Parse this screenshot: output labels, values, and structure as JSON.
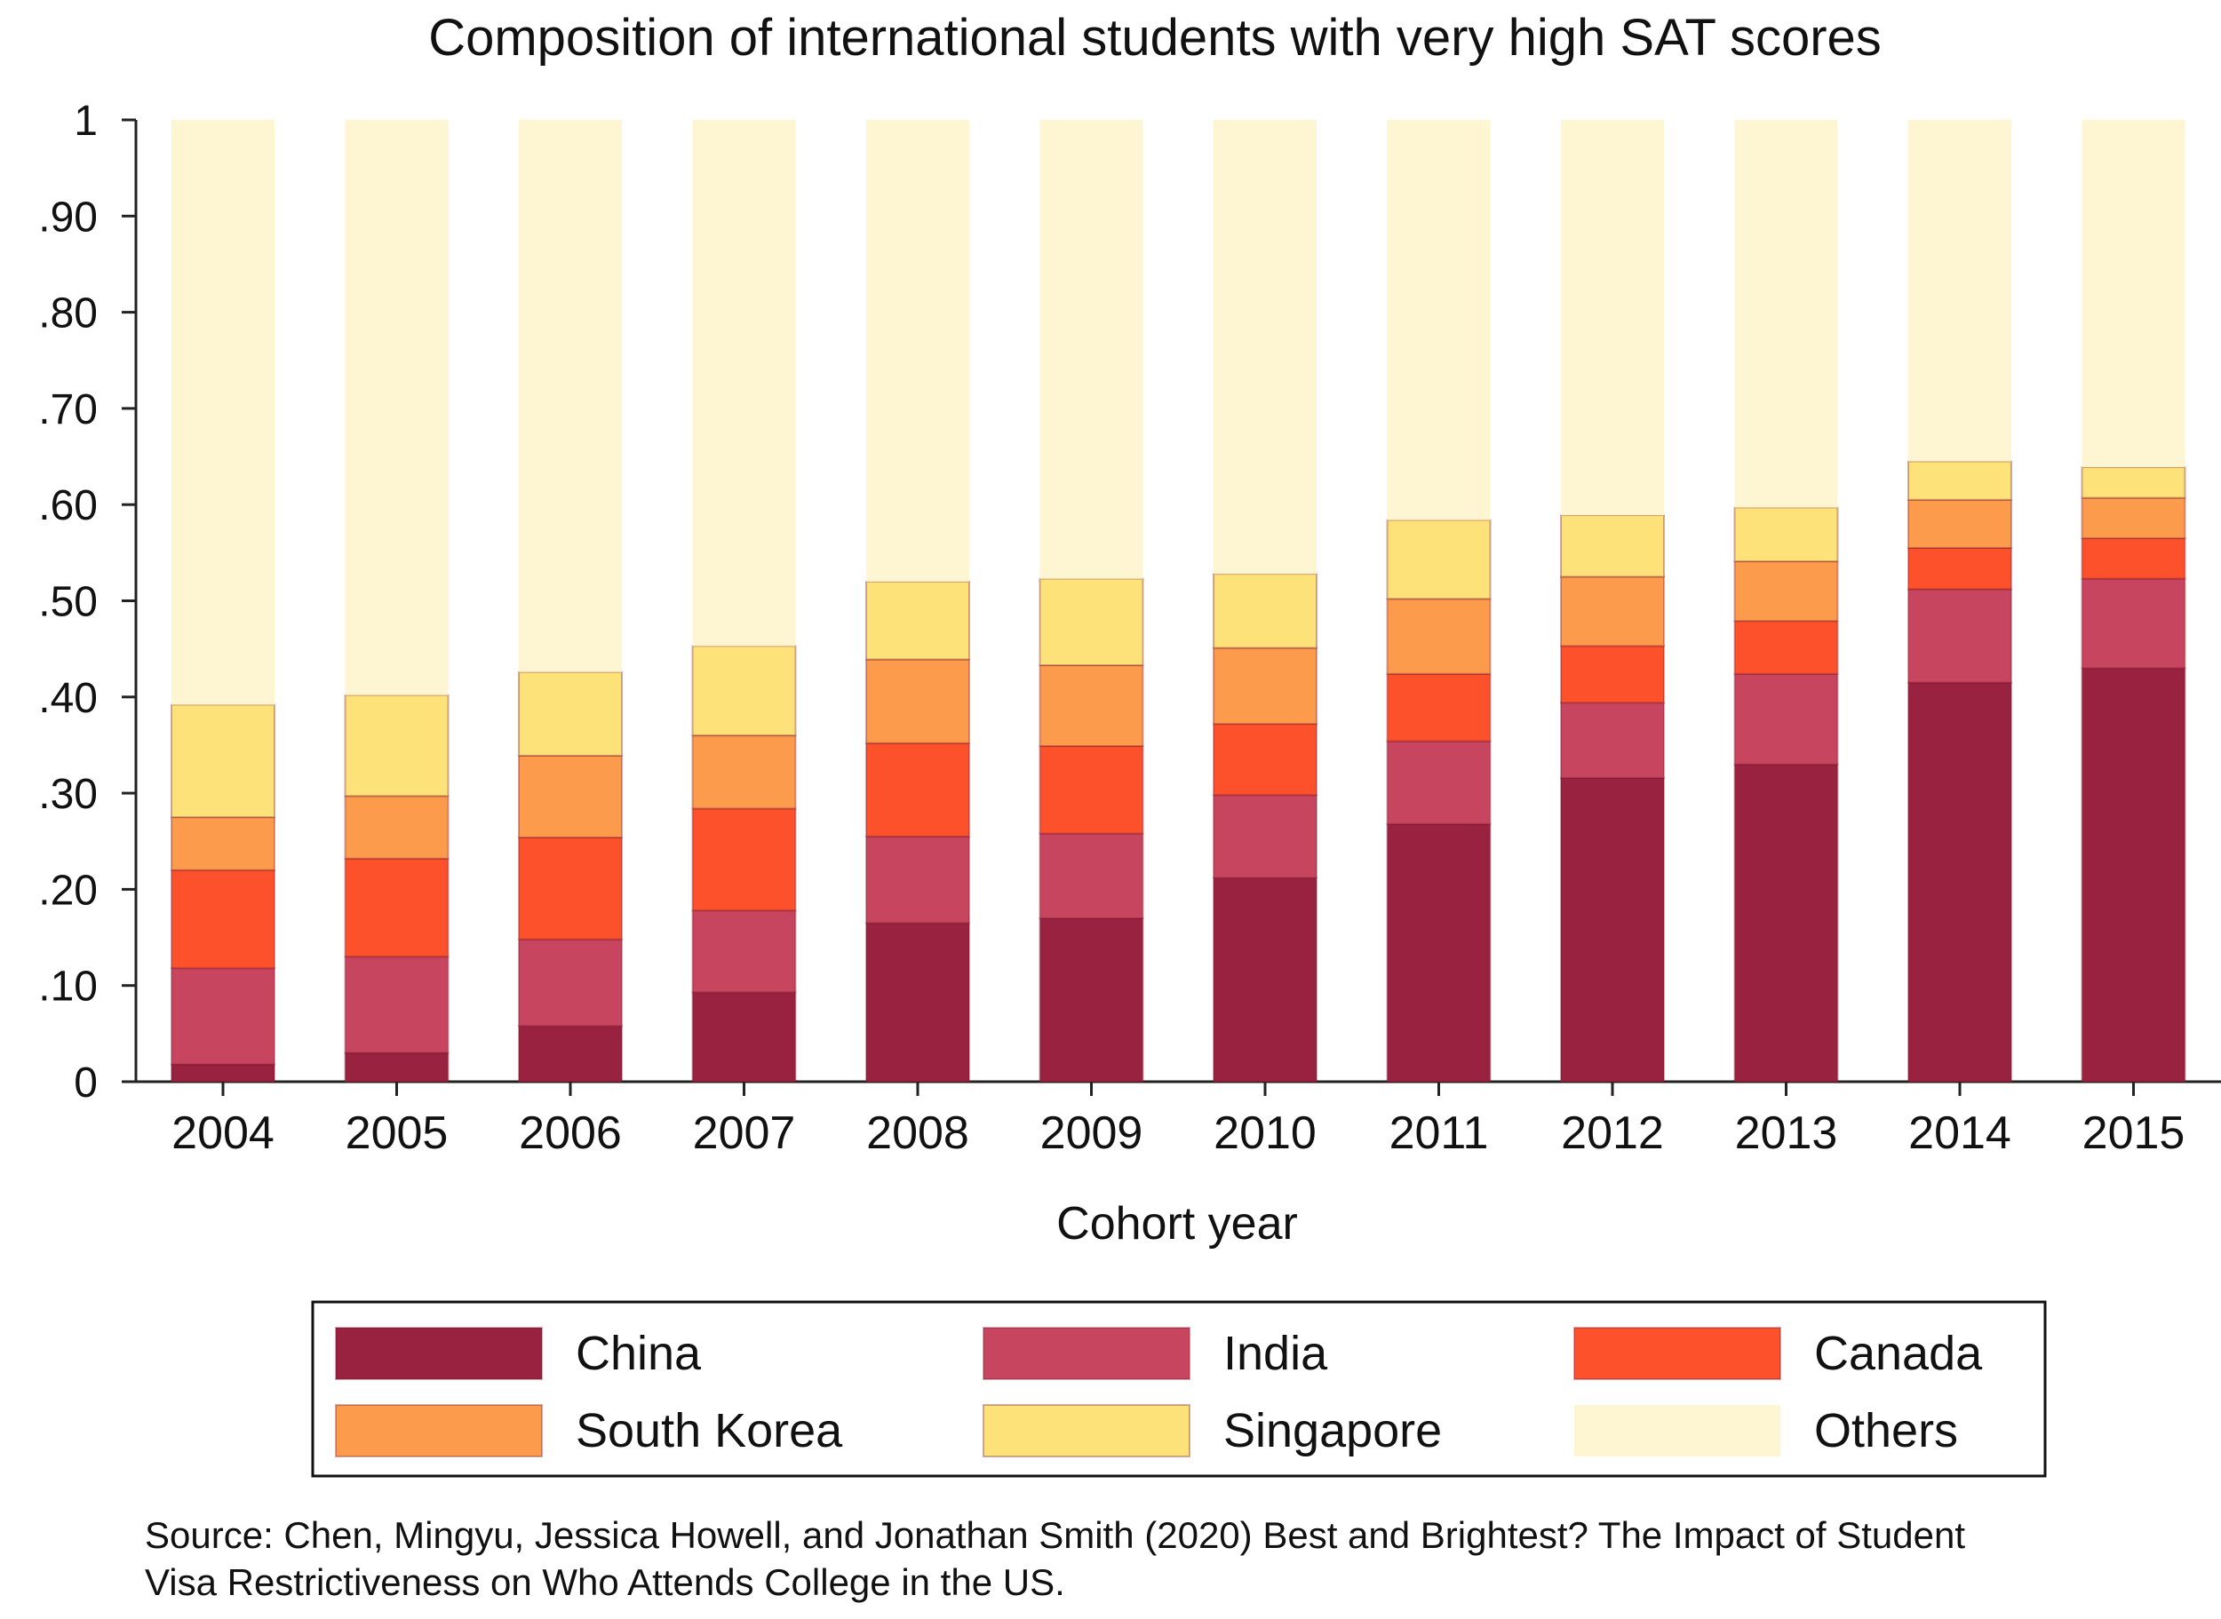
{
  "chart_data": {
    "type": "bar",
    "stacked": true,
    "title": "Composition of international students with very high SAT scores",
    "xlabel": "Cohort year",
    "ylabel": "",
    "ylim": [
      0,
      1
    ],
    "yticks": [
      {
        "value": 0,
        "label": "0"
      },
      {
        "value": 0.1,
        "label": ".10"
      },
      {
        "value": 0.2,
        "label": ".20"
      },
      {
        "value": 0.3,
        "label": ".30"
      },
      {
        "value": 0.4,
        "label": ".40"
      },
      {
        "value": 0.5,
        "label": ".50"
      },
      {
        "value": 0.6,
        "label": ".60"
      },
      {
        "value": 0.7,
        "label": ".70"
      },
      {
        "value": 0.8,
        "label": ".80"
      },
      {
        "value": 0.9,
        "label": ".90"
      },
      {
        "value": 1,
        "label": "1"
      }
    ],
    "categories": [
      "2004",
      "2005",
      "2006",
      "2007",
      "2008",
      "2009",
      "2010",
      "2011",
      "2012",
      "2013",
      "2014",
      "2015"
    ],
    "series": [
      {
        "name": "China",
        "color": "#98223f",
        "values": [
          0.018,
          0.03,
          0.058,
          0.093,
          0.165,
          0.17,
          0.212,
          0.268,
          0.316,
          0.33,
          0.415,
          0.43
        ]
      },
      {
        "name": "India",
        "color": "#c8455f",
        "values": [
          0.1,
          0.1,
          0.09,
          0.085,
          0.09,
          0.088,
          0.086,
          0.086,
          0.078,
          0.094,
          0.097,
          0.093
        ]
      },
      {
        "name": "Canada",
        "color": "#fc512b",
        "values": [
          0.102,
          0.102,
          0.106,
          0.106,
          0.097,
          0.091,
          0.074,
          0.07,
          0.059,
          0.055,
          0.043,
          0.042
        ]
      },
      {
        "name": "South Korea",
        "color": "#fd9b4c",
        "values": [
          0.055,
          0.065,
          0.085,
          0.076,
          0.087,
          0.084,
          0.079,
          0.078,
          0.072,
          0.062,
          0.05,
          0.042
        ]
      },
      {
        "name": "Singapore",
        "color": "#fde27a",
        "values": [
          0.117,
          0.105,
          0.087,
          0.093,
          0.081,
          0.09,
          0.077,
          0.082,
          0.064,
          0.056,
          0.04,
          0.032
        ]
      },
      {
        "name": "Others",
        "color": "#fef5d3",
        "values": [
          0.608,
          0.598,
          0.574,
          0.547,
          0.48,
          0.477,
          0.472,
          0.416,
          0.411,
          0.403,
          0.355,
          0.361
        ]
      }
    ],
    "legend": {
      "position": "bottom",
      "columns": 3
    },
    "grid": false
  },
  "source_note": "Source: Chen, Mingyu, Jessica Howell, and Jonathan Smith (2020) Best and Brightest? The Impact of Student\nVisa Restrictiveness on Who Attends College in the US."
}
